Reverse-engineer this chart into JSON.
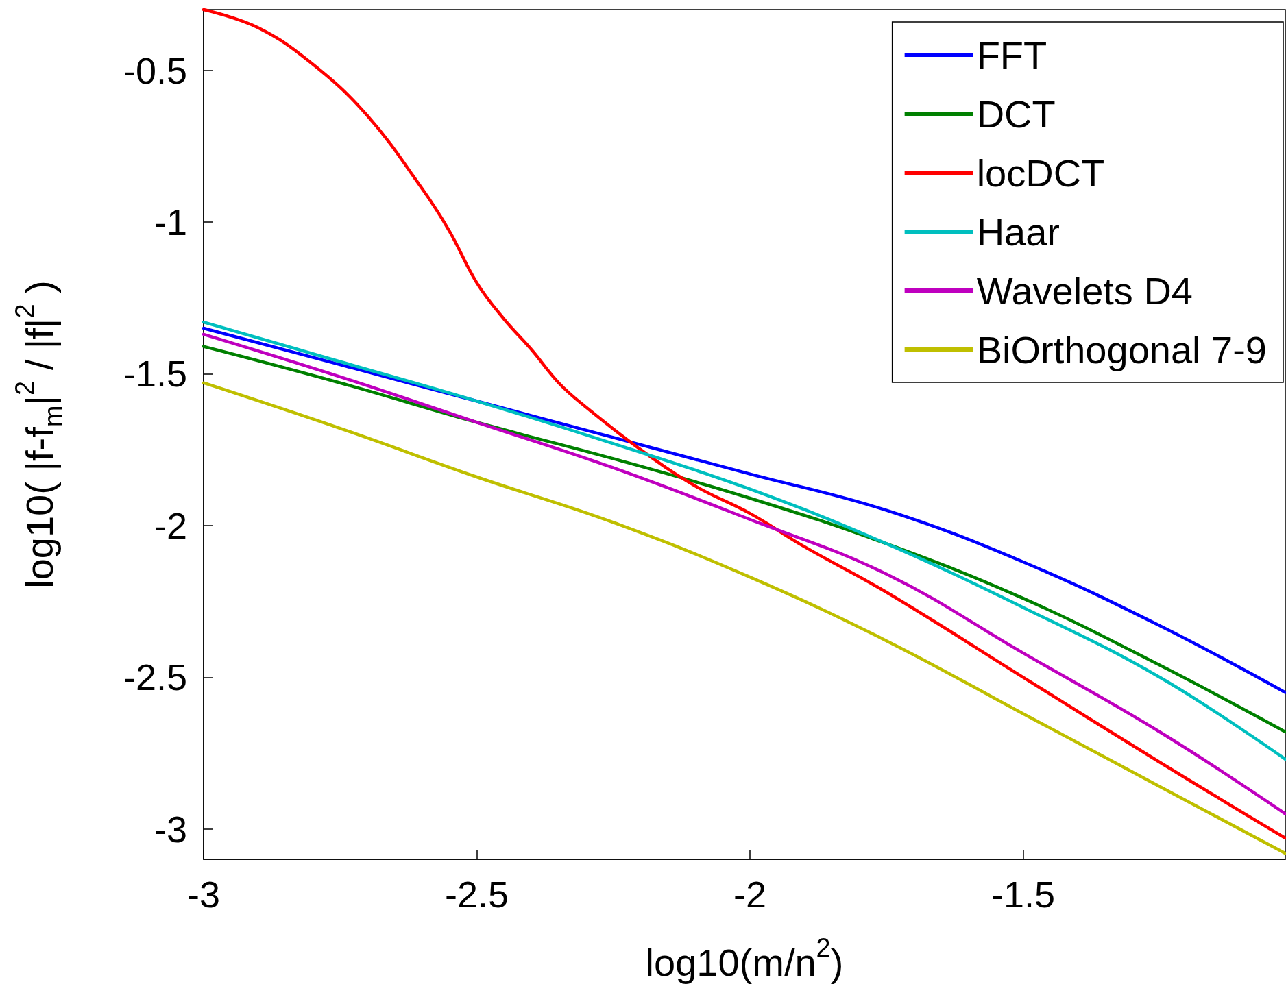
{
  "chart_data": {
    "type": "line",
    "xlabel": "log10(m/n$^{2}$)",
    "ylabel": "log10( |f-f$_{m}$|$^{2}$ / |f|$^{2}$ )",
    "xlim": [
      -3,
      -1.02
    ],
    "ylim": [
      -3.1,
      -0.3
    ],
    "xticks": [
      -3,
      -2.5,
      -2,
      -1.5
    ],
    "yticks": [
      -3,
      -2.5,
      -2,
      -1.5,
      -1,
      -0.5
    ],
    "grid": false,
    "legend": "top right",
    "marker": "none",
    "line_style": "solid",
    "series": [
      {
        "name": "FFT",
        "color": "#0000ff",
        "x": [
          -3,
          -2.75,
          -2.5,
          -2.25,
          -2,
          -1.75,
          -1.5,
          -1.25,
          -1.02
        ],
        "values": [
          -1.35,
          -1.47,
          -1.59,
          -1.71,
          -1.83,
          -1.95,
          -2.12,
          -2.33,
          -2.55
        ]
      },
      {
        "name": "DCT",
        "color": "#008000",
        "x": [
          -3,
          -2.75,
          -2.5,
          -2.25,
          -2,
          -1.75,
          -1.5,
          -1.25,
          -1.02
        ],
        "values": [
          -1.41,
          -1.53,
          -1.66,
          -1.78,
          -1.91,
          -2.06,
          -2.24,
          -2.46,
          -2.68
        ]
      },
      {
        "name": "locDCT",
        "color": "#ff0000",
        "x": [
          -3,
          -2.9,
          -2.8,
          -2.7,
          -2.6,
          -2.55,
          -2.5,
          -2.45,
          -2.4,
          -2.35,
          -2.3,
          -2.2,
          -2.1,
          -2,
          -1.9,
          -1.75,
          -1.5,
          -1.25,
          -1.02
        ],
        "values": [
          -0.3,
          -0.36,
          -0.48,
          -0.65,
          -0.89,
          -1.03,
          -1.2,
          -1.32,
          -1.42,
          -1.53,
          -1.61,
          -1.75,
          -1.87,
          -1.96,
          -2.07,
          -2.22,
          -2.5,
          -2.78,
          -3.03
        ]
      },
      {
        "name": "Haar",
        "color": "#00bfbf",
        "x": [
          -3,
          -2.75,
          -2.5,
          -2.25,
          -2,
          -1.75,
          -1.5,
          -1.25,
          -1.02
        ],
        "values": [
          -1.33,
          -1.46,
          -1.59,
          -1.73,
          -1.88,
          -2.06,
          -2.27,
          -2.5,
          -2.77
        ]
      },
      {
        "name": "Wavelets D4",
        "color": "#bf00bf",
        "x": [
          -3,
          -2.75,
          -2.5,
          -2.25,
          -2,
          -1.75,
          -1.5,
          -1.25,
          -1.02
        ],
        "values": [
          -1.37,
          -1.51,
          -1.66,
          -1.81,
          -1.98,
          -2.16,
          -2.42,
          -2.68,
          -2.95
        ]
      },
      {
        "name": "BiOrthogonal 7-9",
        "color": "#bfbf00",
        "x": [
          -3,
          -2.75,
          -2.5,
          -2.25,
          -2,
          -1.75,
          -1.5,
          -1.25,
          -1.02
        ],
        "values": [
          -1.53,
          -1.68,
          -1.84,
          -1.99,
          -2.17,
          -2.38,
          -2.62,
          -2.86,
          -3.08
        ]
      }
    ]
  }
}
